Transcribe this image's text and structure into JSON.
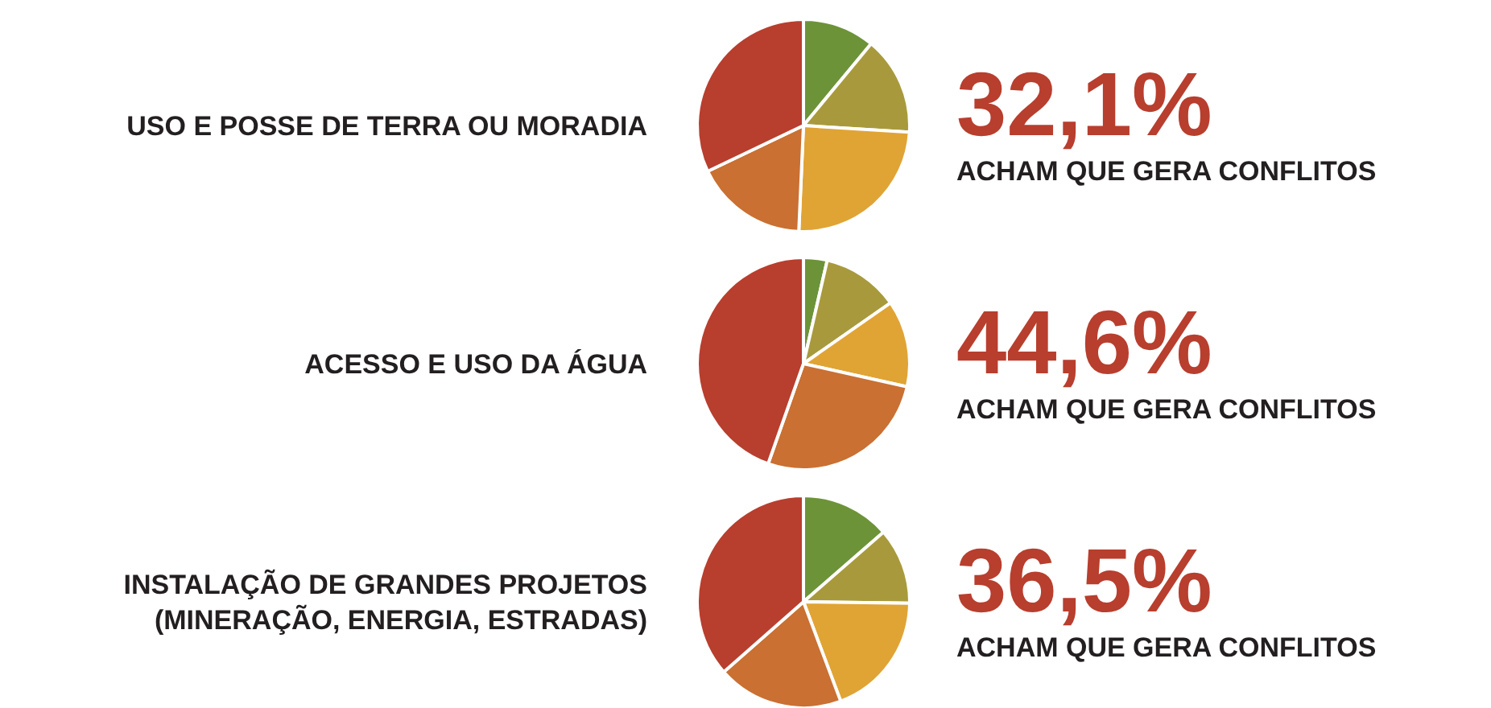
{
  "chart_data": [
    {
      "type": "pie",
      "title": "USO E POSSE DE TERRA OU MORADIA",
      "categories": [
        null,
        null,
        null,
        null,
        null
      ],
      "values": [
        11,
        15,
        24.7,
        17.2,
        32.1
      ],
      "colors": [
        "#6d9339",
        "#a89a3c",
        "#e0a435",
        "#c97032",
        "#b83e2e"
      ],
      "annotations": [
        "32,1%",
        "ACHAM QUE GERA CONFLITOS"
      ]
    },
    {
      "type": "pie",
      "title": "ACESSO E USO DA ÁGUA",
      "categories": [
        null,
        null,
        null,
        null,
        null
      ],
      "values": [
        3.6,
        11.7,
        13.2,
        26.9,
        44.6
      ],
      "colors": [
        "#6d9339",
        "#a89a3c",
        "#e0a435",
        "#c97032",
        "#b83e2e"
      ],
      "annotations": [
        "44,6%",
        "ACHAM QUE GERA CONFLITOS"
      ]
    },
    {
      "type": "pie",
      "title": "INSTALAÇÃO DE GRANDES PROJETOS\n(MINERAÇÃO, ENERGIA, ESTRADAS)",
      "categories": [
        null,
        null,
        null,
        null,
        null
      ],
      "values": [
        13.6,
        11.6,
        19.1,
        19.2,
        36.5
      ],
      "colors": [
        "#6d9339",
        "#a89a3c",
        "#e0a435",
        "#c97032",
        "#b83e2e"
      ],
      "annotations": [
        "36,5%",
        "ACHAM QUE GERA CONFLITOS"
      ]
    }
  ]
}
